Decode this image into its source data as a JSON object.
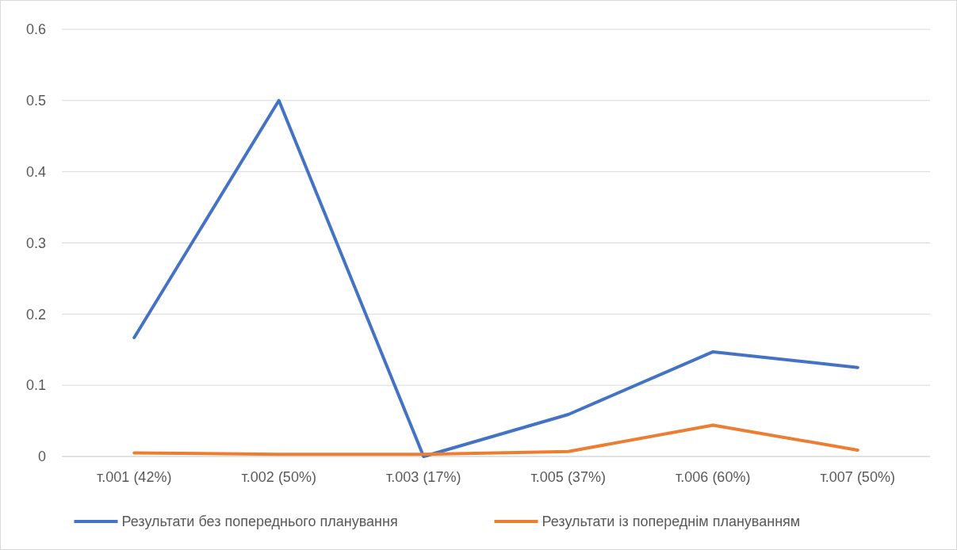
{
  "chart_data": {
    "type": "line",
    "categories": [
      "т.001 (42%)",
      "т.002 (50%)",
      "т.003 (17%)",
      "т.005 (37%)",
      "т.006 (60%)",
      "т.007 (50%)"
    ],
    "series": [
      {
        "name": "Результати без попереднього планування",
        "color": "#4472c4",
        "values": [
          0.167,
          0.5,
          0.0,
          0.059,
          0.147,
          0.125
        ]
      },
      {
        "name": "Результати із попереднім плануванням",
        "color": "#ed7d31",
        "values": [
          0.005,
          0.003,
          0.003,
          0.007,
          0.044,
          0.009
        ]
      }
    ],
    "ylim": [
      0,
      0.6
    ],
    "yticks": [
      0,
      0.1,
      0.2,
      0.3,
      0.4,
      0.5,
      0.6
    ],
    "grid": "y",
    "legend": "bottom",
    "marker": "none",
    "line_style": "solid"
  }
}
